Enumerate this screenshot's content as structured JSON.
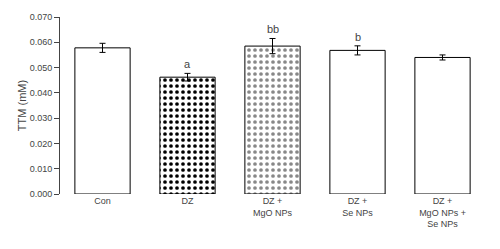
{
  "chart_data": {
    "type": "bar",
    "categories": [
      "Con",
      "DZ",
      "DZ +\nMgO NPs",
      "DZ +\nSe NPs",
      "DZ +\nMgO NPs +\nSe NPs"
    ],
    "values": [
      0.0578,
      0.0462,
      0.0585,
      0.0568,
      0.054
    ],
    "errors": [
      0.0018,
      0.0015,
      0.003,
      0.0018,
      0.001
    ],
    "colors": [
      "white",
      "black",
      "#888888",
      "white",
      "white"
    ],
    "annotations": [
      {
        "category": "DZ",
        "text": "a"
      },
      {
        "category": "DZ +\nMgO NPs",
        "text": "bb"
      },
      {
        "category": "DZ +\nSe NPs",
        "text": "b"
      }
    ],
    "ylabel": "TTM (mM)",
    "ylim": [
      0.0,
      0.07
    ],
    "yticks": [
      {
        "value": 0.0,
        "label": "0.000"
      },
      {
        "value": 0.01,
        "label": "0.010"
      },
      {
        "value": 0.02,
        "label": "0.020"
      },
      {
        "value": 0.03,
        "label": "0.030"
      },
      {
        "value": 0.04,
        "label": "0.040"
      },
      {
        "value": 0.05,
        "label": "0.050"
      },
      {
        "value": 0.06,
        "label": "0.060"
      },
      {
        "value": 0.07,
        "label": "0.070"
      }
    ],
    "grid": false
  }
}
